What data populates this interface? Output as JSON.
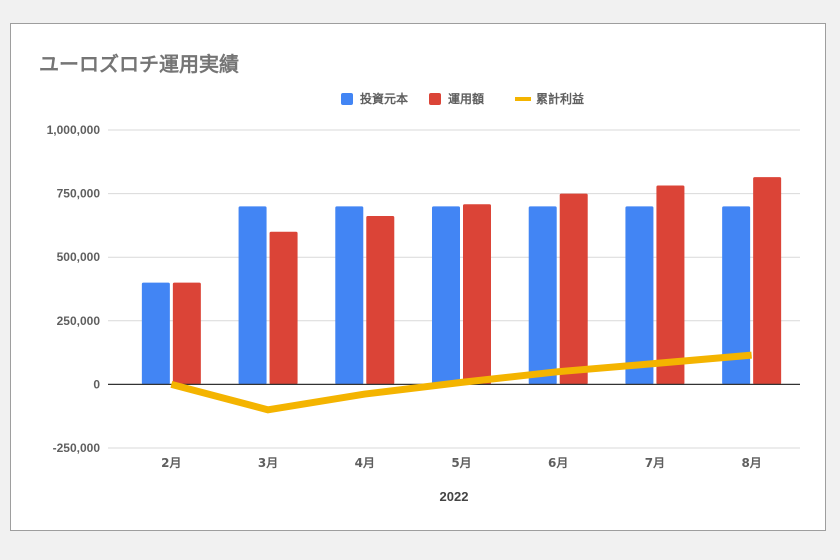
{
  "chart_data": {
    "type": "bar",
    "title": "ユーロズロチ運用実績",
    "xlabel": "2022",
    "ylabel": "",
    "categories": [
      "2月",
      "3月",
      "4月",
      "5月",
      "6月",
      "7月",
      "8月"
    ],
    "ylim": [
      -250000,
      1000000
    ],
    "yticks": [
      1000000,
      750000,
      500000,
      250000,
      0,
      -250000
    ],
    "ytick_labels": [
      "1,000,000",
      "750,000",
      "500,000",
      "250,000",
      "0",
      "-250,000"
    ],
    "grid": true,
    "legend_position": "top",
    "series": [
      {
        "name": "投資元本",
        "kind": "bar",
        "color": "#4285f4",
        "values": [
          400000,
          700000,
          700000,
          700000,
          700000,
          700000,
          700000
        ]
      },
      {
        "name": "運用額",
        "kind": "bar",
        "color": "#db4437",
        "values": [
          400000,
          600000,
          662000,
          708000,
          750000,
          782000,
          815000
        ]
      },
      {
        "name": "累計利益",
        "kind": "line",
        "color": "#f4b400",
        "values": [
          0,
          -100000,
          -38000,
          8000,
          50000,
          82000,
          115000
        ]
      }
    ]
  }
}
